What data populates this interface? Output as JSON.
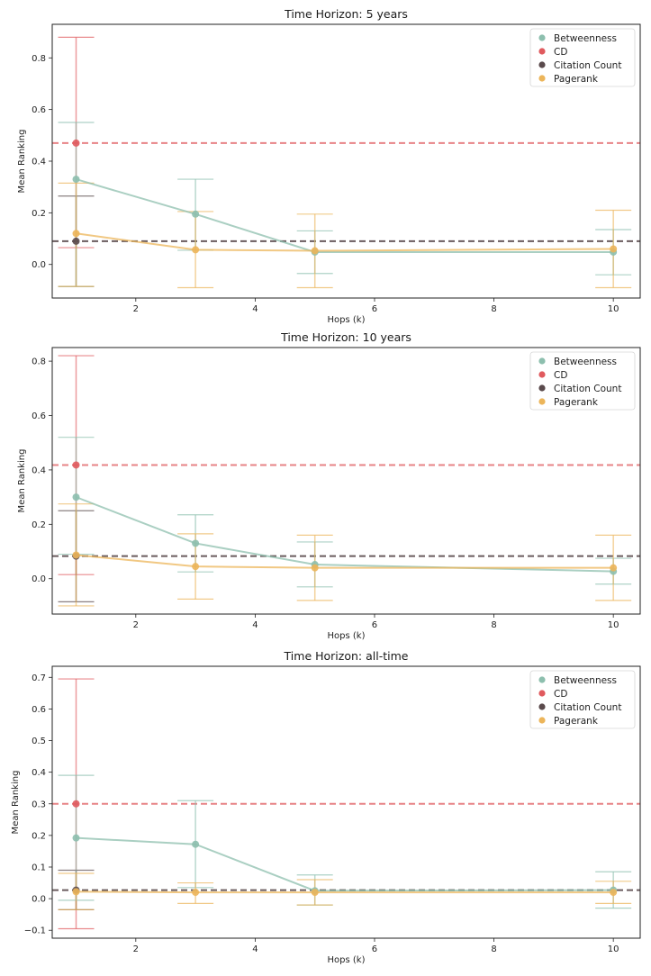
{
  "colors": {
    "betweenness": "#8dbfae",
    "cd": "#e05a5e",
    "citation_count": "#5a4a4c",
    "pagerank": "#ecb55a"
  },
  "chart_data": [
    {
      "type": "line",
      "title": "Time Horizon: 5 years",
      "xlabel": "Hops (k)",
      "ylabel": "Mean Ranking",
      "xlim": [
        0.6,
        10.45
      ],
      "ylim": [
        -0.13,
        0.93
      ],
      "x_ticks": [
        2,
        4,
        6,
        8,
        10
      ],
      "y_ticks": [
        0.0,
        0.2,
        0.4,
        0.6,
        0.8
      ],
      "y_tick_labels": [
        "0.0",
        "0.2",
        "0.4",
        "0.6",
        "0.8"
      ],
      "legend": [
        "Betweenness",
        "CD",
        "Citation Count",
        "Pagerank"
      ],
      "legend_position": "top-right",
      "baselines": [
        {
          "name": "CD",
          "value": 0.47
        },
        {
          "name": "Citation Count",
          "value": 0.09
        }
      ],
      "points": [
        {
          "name": "CD",
          "x": 1,
          "y": 0.47,
          "low": 0.065,
          "high": 0.88
        },
        {
          "name": "Citation Count",
          "x": 1,
          "y": 0.09,
          "low": -0.085,
          "high": 0.265
        }
      ],
      "series": [
        {
          "name": "Betweenness",
          "x": [
            1,
            3,
            5,
            10
          ],
          "values": [
            0.33,
            0.195,
            0.048,
            0.048
          ],
          "low": [
            -0.085,
            0.055,
            -0.035,
            -0.04
          ],
          "high": [
            0.55,
            0.33,
            0.13,
            0.135
          ]
        },
        {
          "name": "Pagerank",
          "x": [
            1,
            3,
            5,
            10
          ],
          "values": [
            0.12,
            0.057,
            0.053,
            0.06
          ],
          "low": [
            -0.085,
            -0.09,
            -0.09,
            -0.09
          ],
          "high": [
            0.315,
            0.205,
            0.195,
            0.21
          ]
        }
      ]
    },
    {
      "type": "line",
      "title": "Time Horizon: 10 years",
      "xlabel": "Hops (k)",
      "ylabel": "Mean Ranking",
      "xlim": [
        0.6,
        10.45
      ],
      "ylim": [
        -0.13,
        0.85
      ],
      "x_ticks": [
        2,
        4,
        6,
        8,
        10
      ],
      "y_ticks": [
        0.0,
        0.2,
        0.4,
        0.6,
        0.8
      ],
      "y_tick_labels": [
        "0.0",
        "0.2",
        "0.4",
        "0.6",
        "0.8"
      ],
      "legend": [
        "Betweenness",
        "CD",
        "Citation Count",
        "Pagerank"
      ],
      "legend_position": "top-right",
      "baselines": [
        {
          "name": "CD",
          "value": 0.418
        },
        {
          "name": "Citation Count",
          "value": 0.083
        }
      ],
      "points": [
        {
          "name": "CD",
          "x": 1,
          "y": 0.418,
          "low": 0.015,
          "high": 0.82
        },
        {
          "name": "Citation Count",
          "x": 1,
          "y": 0.083,
          "low": -0.085,
          "high": 0.25
        }
      ],
      "series": [
        {
          "name": "Betweenness",
          "x": [
            1,
            3,
            5,
            10
          ],
          "values": [
            0.3,
            0.13,
            0.052,
            0.027
          ],
          "low": [
            0.09,
            0.025,
            -0.03,
            -0.02
          ],
          "high": [
            0.52,
            0.235,
            0.135,
            0.075
          ]
        },
        {
          "name": "Pagerank",
          "x": [
            1,
            3,
            5,
            10
          ],
          "values": [
            0.087,
            0.045,
            0.04,
            0.04
          ],
          "low": [
            -0.1,
            -0.075,
            -0.08,
            -0.08
          ],
          "high": [
            0.275,
            0.165,
            0.16,
            0.16
          ]
        }
      ]
    },
    {
      "type": "line",
      "title": "Time Horizon: all-time",
      "xlabel": "Hops (k)",
      "ylabel": "Mean Ranking",
      "xlim": [
        0.6,
        10.45
      ],
      "ylim": [
        -0.125,
        0.735
      ],
      "x_ticks": [
        2,
        4,
        6,
        8,
        10
      ],
      "y_ticks": [
        -0.1,
        0.0,
        0.1,
        0.2,
        0.3,
        0.4,
        0.5,
        0.6,
        0.7
      ],
      "y_tick_labels": [
        "−0.1",
        "0.0",
        "0.1",
        "0.2",
        "0.3",
        "0.4",
        "0.5",
        "0.6",
        "0.7"
      ],
      "legend": [
        "Betweenness",
        "CD",
        "Citation Count",
        "Pagerank"
      ],
      "legend_position": "top-right",
      "baselines": [
        {
          "name": "CD",
          "value": 0.3
        },
        {
          "name": "Citation Count",
          "value": 0.027
        }
      ],
      "points": [
        {
          "name": "CD",
          "x": 1,
          "y": 0.3,
          "low": -0.095,
          "high": 0.695
        },
        {
          "name": "Citation Count",
          "x": 1,
          "y": 0.027,
          "low": -0.035,
          "high": 0.09
        }
      ],
      "series": [
        {
          "name": "Betweenness",
          "x": [
            1,
            3,
            5,
            10
          ],
          "values": [
            0.192,
            0.172,
            0.025,
            0.027
          ],
          "low": [
            -0.005,
            0.035,
            -0.02,
            -0.03
          ],
          "high": [
            0.39,
            0.31,
            0.075,
            0.085
          ]
        },
        {
          "name": "Pagerank",
          "x": [
            1,
            3,
            5,
            10
          ],
          "values": [
            0.022,
            0.02,
            0.02,
            0.02
          ],
          "low": [
            -0.035,
            -0.015,
            -0.02,
            -0.015
          ],
          "high": [
            0.08,
            0.05,
            0.06,
            0.055
          ]
        }
      ]
    }
  ]
}
